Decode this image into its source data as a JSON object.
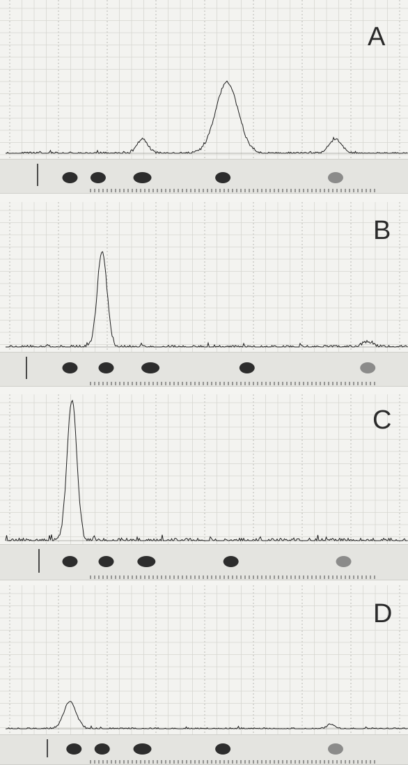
{
  "chart_data": [
    {
      "type": "line",
      "title": "",
      "xlabel": "",
      "ylabel": "",
      "grid": true,
      "panel_label": "A",
      "peaks": [
        {
          "position": 0.34,
          "height": 0.2
        },
        {
          "position": 0.55,
          "height": 1.0
        },
        {
          "position": 0.82,
          "height": 0.2
        }
      ],
      "spots": [
        0.16,
        0.23,
        0.34,
        0.54,
        0.82
      ]
    },
    {
      "type": "line",
      "title": "",
      "xlabel": "",
      "ylabel": "",
      "grid": true,
      "panel_label": "B",
      "peaks": [
        {
          "position": 0.24,
          "height": 1.0
        },
        {
          "position": 0.9,
          "height": 0.06
        }
      ],
      "spots": [
        0.16,
        0.25,
        0.36,
        0.6,
        0.9
      ]
    },
    {
      "type": "line",
      "title": "",
      "xlabel": "",
      "ylabel": "",
      "grid": true,
      "panel_label": "C",
      "peaks": [
        {
          "position": 0.165,
          "height": 1.0
        }
      ],
      "spots": [
        0.16,
        0.25,
        0.35,
        0.56,
        0.84
      ]
    },
    {
      "type": "line",
      "title": "",
      "xlabel": "",
      "ylabel": "",
      "grid": true,
      "panel_label": "D",
      "peaks": [
        {
          "position": 0.16,
          "height": 0.45
        },
        {
          "position": 0.81,
          "height": 0.08
        }
      ],
      "spots": [
        0.17,
        0.24,
        0.34,
        0.54,
        0.82
      ]
    }
  ]
}
